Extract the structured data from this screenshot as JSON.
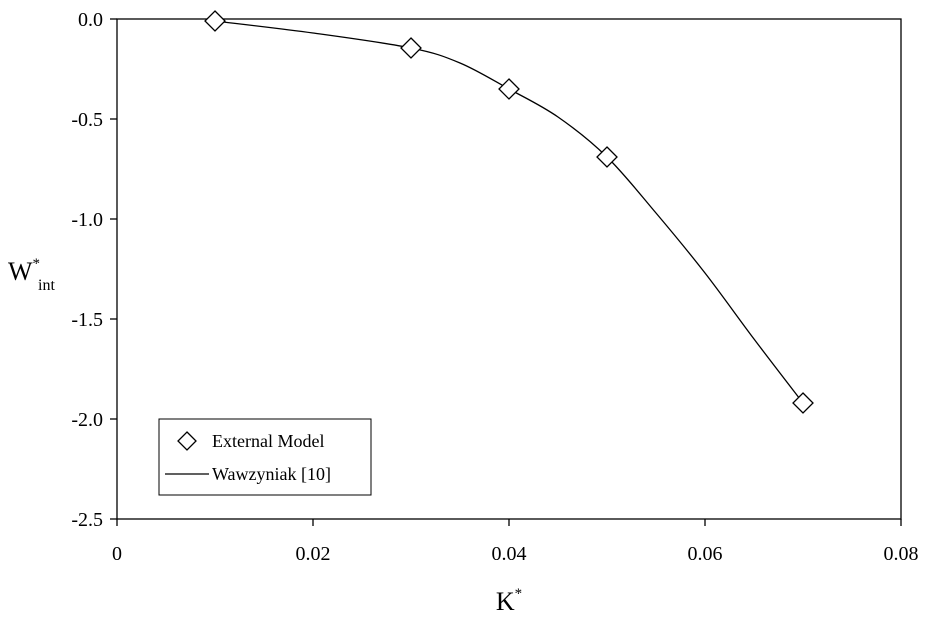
{
  "chart_data": {
    "type": "line",
    "xlabel": {
      "base": "K",
      "sup": "*"
    },
    "ylabel": {
      "base": "W",
      "sup": "*",
      "sub": "int"
    },
    "xlim": [
      0,
      0.08
    ],
    "ylim": [
      -2.5,
      0.0
    ],
    "x_ticks": [
      "0",
      "0.02",
      "0.04",
      "0.06",
      "0.08"
    ],
    "x_tick_values": [
      0,
      0.02,
      0.04,
      0.06,
      0.08
    ],
    "y_ticks": [
      "0.0",
      "-0.5",
      "-1.0",
      "-1.5",
      "-2.0",
      "-2.5"
    ],
    "y_tick_values": [
      0.0,
      -0.5,
      -1.0,
      -1.5,
      -2.0,
      -2.5
    ],
    "grid": false,
    "legend_position": "bottom-left",
    "series": [
      {
        "name": "External Model",
        "style": "markers",
        "marker": "diamond",
        "x": [
          0.01,
          0.03,
          0.04,
          0.05,
          0.07
        ],
        "y": [
          -0.01,
          -0.145,
          -0.35,
          -0.69,
          -1.92
        ]
      },
      {
        "name": "Wawzyniak [10]",
        "style": "line",
        "x": [
          0.01,
          0.02,
          0.03,
          0.035,
          0.04,
          0.045,
          0.05,
          0.055,
          0.06,
          0.065,
          0.07
        ],
        "y": [
          -0.01,
          -0.07,
          -0.145,
          -0.22,
          -0.35,
          -0.49,
          -0.69,
          -0.97,
          -1.27,
          -1.6,
          -1.92
        ]
      }
    ]
  }
}
